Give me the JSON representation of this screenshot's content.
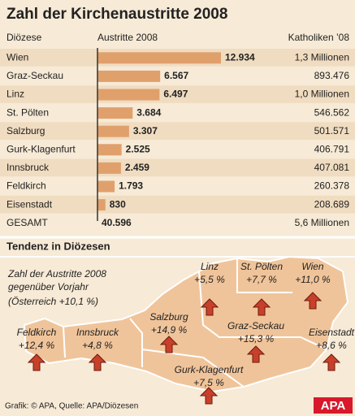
{
  "chart_data": {
    "type": "bar",
    "title": "Zahl der Kirchenaustritte 2008",
    "column_headers": [
      "Diözese",
      "Austritte 2008",
      "Katholiken ’08"
    ],
    "categories": [
      "Wien",
      "Graz-Seckau",
      "Linz",
      "St. Pölten",
      "Salzburg",
      "Gurk-Klagenfurt",
      "Innsbruck",
      "Feldkirch",
      "Eisenstadt"
    ],
    "values": [
      12934,
      6567,
      6497,
      3684,
      3307,
      2525,
      2459,
      1793,
      830
    ],
    "value_labels": [
      "12.934",
      "6.567",
      "6.497",
      "3.684",
      "3.307",
      "2.525",
      "2.459",
      "1.793",
      "830"
    ],
    "catholics": [
      "1,3 Millionen",
      "893.476",
      "1,0 Millionen",
      "546.562",
      "501.571",
      "406.791",
      "407.081",
      "260.378",
      "208.689"
    ],
    "color": "#e0a06c",
    "total": {
      "name": "GESAMT",
      "count": "40.596",
      "catholics": "5,6 Millionen"
    }
  },
  "map": {
    "title": "Tendenz in Diözesen",
    "note": [
      "Zahl der Austritte 2008",
      "gegenüber Vorjahr",
      "(Österreich +10,1 %)"
    ],
    "regions": [
      {
        "name": "Linz",
        "change": "+5,5 %"
      },
      {
        "name": "St. Pölten",
        "change": "+7,7 %"
      },
      {
        "name": "Wien",
        "change": "+11,0 %"
      },
      {
        "name": "Salzburg",
        "change": "+14,9 %"
      },
      {
        "name": "Graz-Seckau",
        "change": "+15,3 %"
      },
      {
        "name": "Feldkirch",
        "change": "+12,4 %"
      },
      {
        "name": "Innsbruck",
        "change": "+4,8 %"
      },
      {
        "name": "Eisenstadt",
        "change": "+8,6 %"
      },
      {
        "name": "Gurk-Klagenfurt",
        "change": "+7,5 %"
      }
    ]
  },
  "footer": {
    "credit": "Grafik: © APA, Quelle: APA/Diözesen",
    "logo": "APA"
  }
}
